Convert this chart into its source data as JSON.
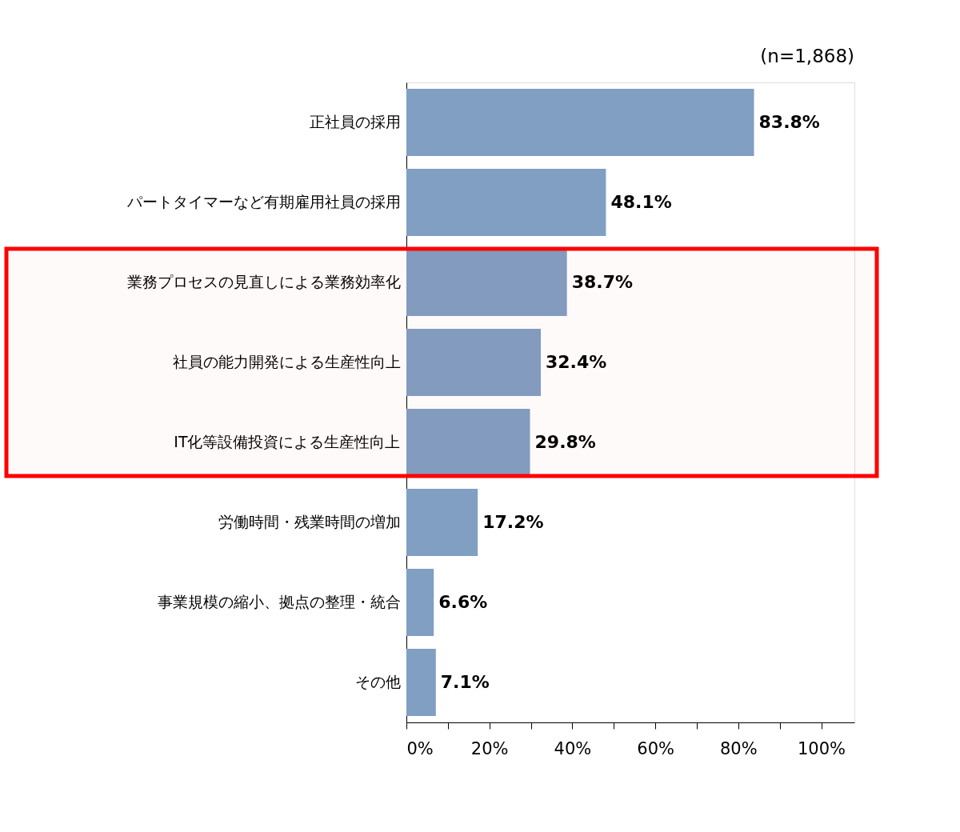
{
  "chart_data": {
    "type": "bar",
    "orientation": "horizontal",
    "categories": [
      "正社員の採用",
      "パートタイマーなど有期雇用社員の採用",
      "業務プロセスの見直しによる業務効率化",
      "社員の能力開発による生産性向上",
      "IT化等設備投資による生産性向上",
      "労働時間・残業時間の増加",
      "事業規模の縮小、拠点の整理・統合",
      "その他"
    ],
    "values": [
      83.8,
      48.1,
      38.7,
      32.4,
      29.8,
      17.2,
      6.6,
      7.1
    ],
    "value_labels": [
      "83.8%",
      "48.1%",
      "38.7%",
      "32.4%",
      "29.8%",
      "17.2%",
      "6.6%",
      "7.1%"
    ],
    "color": "#809fc2",
    "xlim": [
      0,
      108
    ],
    "xticks": [
      {
        "value": 0,
        "label": "0%"
      },
      {
        "value": 10,
        "label": null
      },
      {
        "value": 20,
        "label": "20%"
      },
      {
        "value": 30,
        "label": null
      },
      {
        "value": 40,
        "label": "40%"
      },
      {
        "value": 50,
        "label": null
      },
      {
        "value": 60,
        "label": "60%"
      },
      {
        "value": 70,
        "label": null
      },
      {
        "value": 80,
        "label": "80%"
      },
      {
        "value": 90,
        "label": null
      },
      {
        "value": 100,
        "label": "100%"
      }
    ],
    "bands": [
      {
        "axis": "y",
        "from": "業務プロセスの見直しによる業務効率化",
        "to": "IT化等設備投資による生産性向上",
        "color": "#ff0000"
      }
    ],
    "annotations": [
      "(n=1,868)"
    ],
    "grid": false
  }
}
